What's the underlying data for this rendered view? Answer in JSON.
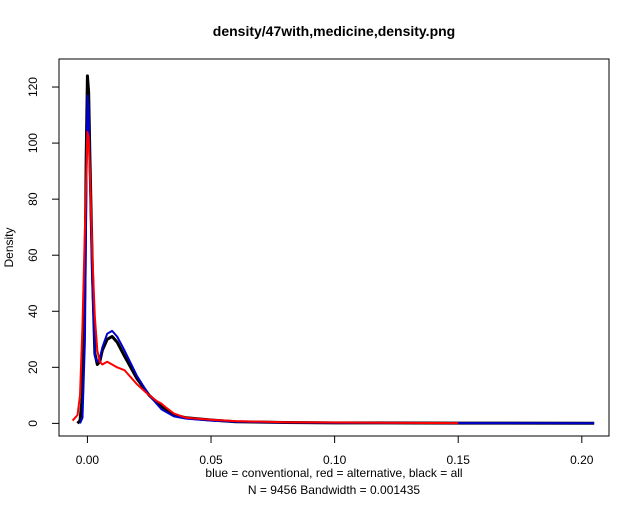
{
  "chart_data": {
    "type": "line",
    "title": "density/47with,medicine,density.png",
    "xlabel_line1": "blue = conventional, red = alternative, black = all",
    "xlabel_line2": "N = 9456   Bandwidth = 0.001435",
    "ylabel": "Density",
    "xlim": [
      -0.0115,
      0.211
    ],
    "ylim": [
      -4.5,
      130
    ],
    "xticks": [
      0.0,
      0.05,
      0.1,
      0.15,
      0.2
    ],
    "xtick_labels": [
      "0.00",
      "0.05",
      "0.10",
      "0.15",
      "0.20"
    ],
    "yticks": [
      0,
      20,
      40,
      60,
      80,
      100,
      120
    ],
    "ytick_labels": [
      "0",
      "20",
      "40",
      "60",
      "80",
      "100",
      "120"
    ],
    "grid": false,
    "legend": "none",
    "series": [
      {
        "name": "all",
        "color": "#000000",
        "width": 3,
        "points": [
          [
            -0.004,
            0
          ],
          [
            -0.003,
            1
          ],
          [
            -0.002,
            10
          ],
          [
            -0.001,
            50
          ],
          [
            -0.0005,
            95
          ],
          [
            0.0,
            124
          ],
          [
            0.0005,
            118
          ],
          [
            0.001,
            95
          ],
          [
            0.002,
            55
          ],
          [
            0.003,
            25
          ],
          [
            0.004,
            21
          ],
          [
            0.005,
            22
          ],
          [
            0.006,
            26
          ],
          [
            0.008,
            30
          ],
          [
            0.01,
            31
          ],
          [
            0.012,
            29
          ],
          [
            0.015,
            24
          ],
          [
            0.02,
            16
          ],
          [
            0.025,
            10
          ],
          [
            0.03,
            6
          ],
          [
            0.035,
            3
          ],
          [
            0.04,
            2
          ],
          [
            0.05,
            1.2
          ],
          [
            0.06,
            0.6
          ],
          [
            0.08,
            0.3
          ],
          [
            0.1,
            0.2
          ],
          [
            0.15,
            0.1
          ],
          [
            0.205,
            0.05
          ]
        ]
      },
      {
        "name": "conventional",
        "color": "#0000cc",
        "width": 2,
        "points": [
          [
            -0.003,
            0
          ],
          [
            -0.002,
            2
          ],
          [
            -0.001,
            30
          ],
          [
            -0.0005,
            80
          ],
          [
            0.0,
            117
          ],
          [
            0.0005,
            112
          ],
          [
            0.001,
            90
          ],
          [
            0.002,
            50
          ],
          [
            0.003,
            24
          ],
          [
            0.004,
            22
          ],
          [
            0.005,
            23
          ],
          [
            0.006,
            27
          ],
          [
            0.008,
            32
          ],
          [
            0.01,
            33
          ],
          [
            0.012,
            31
          ],
          [
            0.015,
            26
          ],
          [
            0.02,
            17
          ],
          [
            0.025,
            10
          ],
          [
            0.03,
            5
          ],
          [
            0.035,
            2.5
          ],
          [
            0.04,
            1.7
          ],
          [
            0.05,
            1
          ],
          [
            0.06,
            0.6
          ],
          [
            0.08,
            0.3
          ],
          [
            0.1,
            0.2
          ],
          [
            0.15,
            0.1
          ],
          [
            0.205,
            0.05
          ]
        ]
      },
      {
        "name": "alternative",
        "color": "#ff0000",
        "width": 2,
        "points": [
          [
            -0.006,
            1
          ],
          [
            -0.004,
            3
          ],
          [
            -0.003,
            10
          ],
          [
            -0.002,
            35
          ],
          [
            -0.001,
            70
          ],
          [
            0.0,
            104
          ],
          [
            0.0005,
            102
          ],
          [
            0.001,
            90
          ],
          [
            0.002,
            60
          ],
          [
            0.003,
            38
          ],
          [
            0.004,
            26
          ],
          [
            0.005,
            22
          ],
          [
            0.006,
            21
          ],
          [
            0.008,
            22
          ],
          [
            0.01,
            21
          ],
          [
            0.012,
            20
          ],
          [
            0.015,
            19
          ],
          [
            0.02,
            14
          ],
          [
            0.025,
            10
          ],
          [
            0.028,
            8
          ],
          [
            0.03,
            7
          ],
          [
            0.032,
            5.5
          ],
          [
            0.035,
            3.5
          ],
          [
            0.04,
            2
          ],
          [
            0.05,
            1.3
          ],
          [
            0.06,
            0.8
          ],
          [
            0.08,
            0.4
          ],
          [
            0.1,
            0.3
          ],
          [
            0.15,
            0.1
          ]
        ]
      }
    ]
  }
}
